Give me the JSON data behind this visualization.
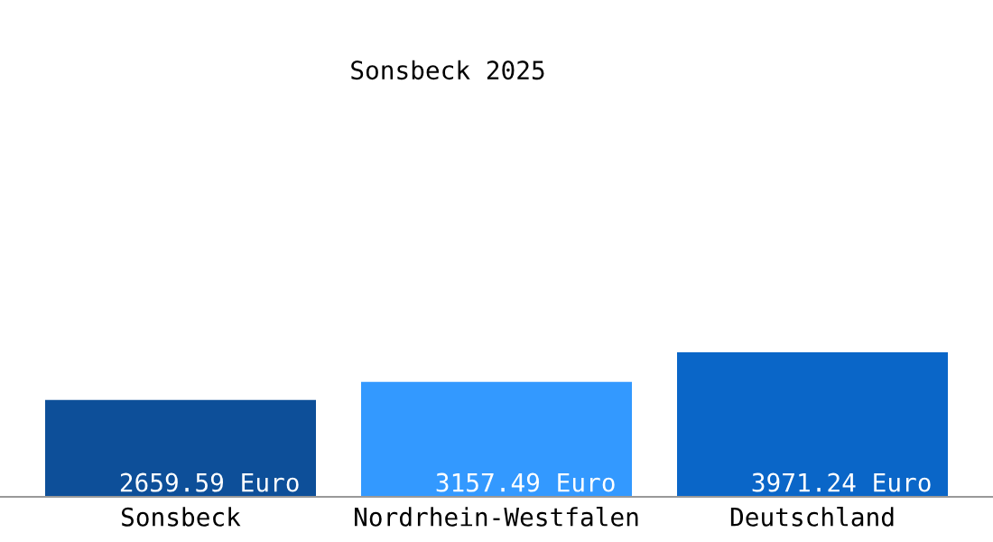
{
  "chart_data": {
    "type": "bar",
    "title": "Sonsbeck 2025",
    "categories": [
      "Sonsbeck",
      "Nordrhein-Westfalen",
      "Deutschland"
    ],
    "values": [
      2659.59,
      3157.49,
      3971.24
    ],
    "colors": [
      "#0d4f99",
      "#3399ff",
      "#0a66c8"
    ],
    "value_labels": [
      "2659.59 Euro",
      "3157.49 Euro",
      "3971.24 Euro"
    ],
    "grid": false,
    "legend": false
  }
}
